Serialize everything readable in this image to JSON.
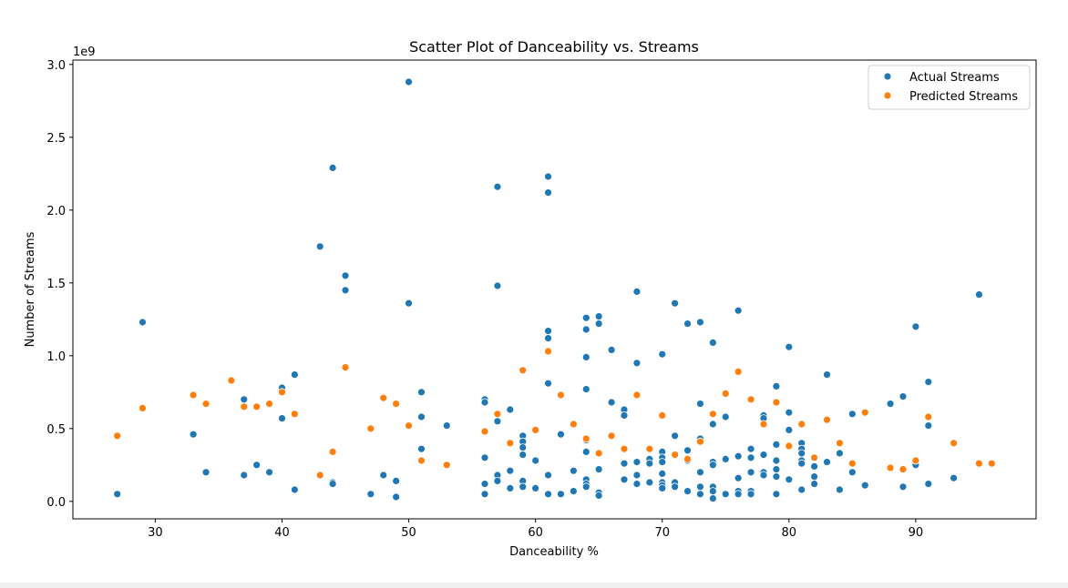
{
  "chart_data": {
    "type": "scatter",
    "title": "Scatter Plot of Danceability vs. Streams",
    "xlabel": "Danceability %",
    "ylabel": "Number of Streams",
    "y_offset_label": "1e9",
    "xlim": [
      23.5,
      99.5
    ],
    "ylim": [
      -0.12,
      3.03
    ],
    "xticks": [
      30,
      40,
      50,
      60,
      70,
      80,
      90
    ],
    "yticks": [
      0.0,
      0.5,
      1.0,
      1.5,
      2.0,
      2.5,
      3.0
    ],
    "xtick_labels": [
      "30",
      "40",
      "50",
      "60",
      "70",
      "80",
      "90"
    ],
    "ytick_labels": [
      "0.0",
      "0.5",
      "1.0",
      "1.5",
      "2.0",
      "2.5",
      "3.0"
    ],
    "y_units": "streams (×1e9)",
    "grid": false,
    "legend_position": "upper right",
    "series": [
      {
        "name": "Actual Streams",
        "color": "#1f77b4",
        "x": [
          27,
          29,
          33,
          34,
          37,
          37,
          38,
          39,
          40,
          40,
          41,
          41,
          43,
          44,
          44,
          44,
          45,
          45,
          47,
          48,
          49,
          49,
          50,
          50,
          51,
          51,
          51,
          53,
          56,
          56,
          56,
          56,
          56,
          57,
          57,
          57,
          57,
          57,
          58,
          58,
          58,
          59,
          59,
          59,
          59,
          59,
          59,
          60,
          60,
          61,
          61,
          61,
          61,
          61,
          61,
          61,
          62,
          62,
          63,
          63,
          64,
          64,
          64,
          64,
          64,
          64,
          64,
          64,
          64,
          65,
          65,
          65,
          65,
          65,
          66,
          66,
          67,
          67,
          67,
          67,
          68,
          68,
          68,
          68,
          68,
          69,
          69,
          69,
          70,
          70,
          70,
          70,
          70,
          70,
          70,
          70,
          71,
          71,
          71,
          71,
          72,
          72,
          72,
          72,
          73,
          73,
          73,
          73,
          73,
          73,
          74,
          74,
          74,
          74,
          74,
          74,
          74,
          75,
          75,
          75,
          76,
          76,
          76,
          76,
          76,
          77,
          77,
          77,
          77,
          77,
          78,
          78,
          78,
          78,
          78,
          79,
          79,
          79,
          79,
          79,
          79,
          80,
          80,
          80,
          80,
          81,
          81,
          81,
          81,
          81,
          81,
          82,
          82,
          82,
          83,
          83,
          84,
          84,
          85,
          85,
          86,
          88,
          89,
          89,
          90,
          90,
          91,
          91,
          91,
          93,
          95
        ],
        "y": [
          0.05,
          1.23,
          0.46,
          0.2,
          0.7,
          0.18,
          0.25,
          0.2,
          0.78,
          0.57,
          0.87,
          0.08,
          1.75,
          2.29,
          0.13,
          0.12,
          1.55,
          1.45,
          0.05,
          0.18,
          0.14,
          0.03,
          2.88,
          1.36,
          0.75,
          0.58,
          0.36,
          0.52,
          0.7,
          0.68,
          0.3,
          0.12,
          0.05,
          2.16,
          1.48,
          0.55,
          0.18,
          0.14,
          0.63,
          0.21,
          0.09,
          0.45,
          0.41,
          0.37,
          0.32,
          0.14,
          0.1,
          0.28,
          0.09,
          2.23,
          2.12,
          1.17,
          1.12,
          0.81,
          0.18,
          0.05,
          0.46,
          0.05,
          0.21,
          0.07,
          1.26,
          1.18,
          0.99,
          0.77,
          0.42,
          0.34,
          0.15,
          0.12,
          0.1,
          1.27,
          1.22,
          0.22,
          0.06,
          0.04,
          1.04,
          0.68,
          0.63,
          0.59,
          0.26,
          0.15,
          1.44,
          0.95,
          0.27,
          0.18,
          0.12,
          0.29,
          0.26,
          0.13,
          1.01,
          0.34,
          0.3,
          0.27,
          0.19,
          0.13,
          0.11,
          0.09,
          1.36,
          0.45,
          0.13,
          0.1,
          1.22,
          0.35,
          0.28,
          0.07,
          1.23,
          0.67,
          0.43,
          0.2,
          0.1,
          0.05,
          1.09,
          0.53,
          0.27,
          0.25,
          0.1,
          0.07,
          0.02,
          0.58,
          0.29,
          0.05,
          1.31,
          0.31,
          0.16,
          0.07,
          0.05,
          0.36,
          0.3,
          0.2,
          0.07,
          0.05,
          0.59,
          0.57,
          0.32,
          0.2,
          0.18,
          0.79,
          0.39,
          0.28,
          0.22,
          0.17,
          0.05,
          1.06,
          0.61,
          0.49,
          0.15,
          0.4,
          0.36,
          0.33,
          0.28,
          0.26,
          0.08,
          0.24,
          0.17,
          0.12,
          0.87,
          0.27,
          0.33,
          0.08,
          0.6,
          0.2,
          0.11,
          0.67,
          0.72,
          0.1,
          1.2,
          0.25,
          0.82,
          0.52,
          0.12,
          0.16,
          1.42
        ]
      },
      {
        "name": "Predicted Streams",
        "color": "#ff7f0e",
        "x": [
          27,
          29,
          33,
          34,
          36,
          37,
          38,
          39,
          40,
          41,
          43,
          44,
          45,
          47,
          48,
          49,
          50,
          51,
          53,
          56,
          57,
          58,
          59,
          60,
          61,
          62,
          63,
          64,
          65,
          66,
          67,
          68,
          69,
          70,
          71,
          72,
          73,
          74,
          75,
          76,
          77,
          78,
          79,
          80,
          81,
          82,
          83,
          84,
          85,
          86,
          88,
          89,
          90,
          91,
          93,
          95,
          96
        ],
        "y": [
          0.45,
          0.64,
          0.73,
          0.67,
          0.83,
          0.65,
          0.65,
          0.67,
          0.75,
          0.6,
          0.18,
          0.34,
          0.92,
          0.5,
          0.71,
          0.67,
          0.52,
          0.28,
          0.25,
          0.48,
          0.6,
          0.4,
          0.9,
          0.49,
          1.03,
          0.73,
          0.53,
          0.43,
          0.33,
          0.45,
          0.36,
          0.73,
          0.36,
          0.59,
          0.32,
          0.29,
          0.41,
          0.6,
          0.74,
          0.89,
          0.7,
          0.53,
          0.68,
          0.38,
          0.53,
          0.3,
          0.56,
          0.4,
          0.26,
          0.61,
          0.23,
          0.22,
          0.28,
          0.58,
          0.4,
          0.26,
          0.26
        ]
      }
    ]
  }
}
